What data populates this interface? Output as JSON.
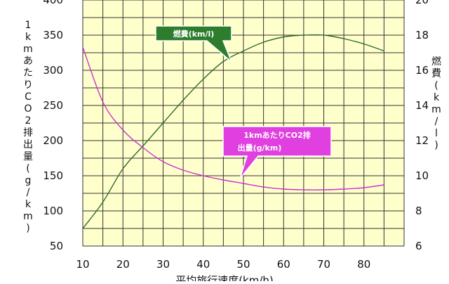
{
  "chart_data": {
    "type": "line",
    "xlabel": "平均旅行速度(km/h)",
    "ylabel_left": "1kmあたりCO2排出量(g/km)",
    "ylabel_right": "燃費(km/l)",
    "x_ticks": [
      10,
      20,
      30,
      40,
      50,
      60,
      70,
      80
    ],
    "y_left_ticks": [
      50,
      100,
      150,
      200,
      250,
      300,
      350,
      400
    ],
    "y_right_ticks": [
      6,
      8,
      10,
      12,
      14,
      16,
      18,
      20
    ],
    "xlim": [
      10,
      90
    ],
    "ylim_left": [
      50,
      400
    ],
    "ylim_right": [
      6,
      20
    ],
    "grid": true,
    "series": [
      {
        "name": "燃費(km/l)",
        "axis": "right",
        "color": "#2e6b2e",
        "x": [
          10,
          15,
          20,
          25,
          30,
          35,
          40,
          45,
          50,
          55,
          60,
          65,
          70,
          75,
          80,
          85
        ],
        "y": [
          7.0,
          8.5,
          10.4,
          11.7,
          13.0,
          14.3,
          15.5,
          16.5,
          17.1,
          17.6,
          17.9,
          18.0,
          18.0,
          17.8,
          17.5,
          17.1
        ]
      },
      {
        "name": "1kmあたりCO2排出量(g/km)",
        "axis": "left",
        "color": "#cc33cc",
        "x": [
          10,
          15,
          20,
          25,
          30,
          35,
          40,
          45,
          50,
          55,
          60,
          65,
          70,
          75,
          80,
          85
        ],
        "y": [
          333,
          255,
          215,
          190,
          170,
          158,
          150,
          144,
          139,
          134,
          131,
          130,
          130,
          131,
          133,
          137
        ]
      }
    ],
    "annotations": [
      {
        "text": "燃費(km/l)",
        "series": 0
      },
      {
        "text_line1": "1kmあたりCO2排",
        "text_line2": "出量(g/km)",
        "series": 1
      }
    ]
  },
  "colors": {
    "plot_background": "#ffffcc",
    "grid": "#333333",
    "fuel_callout_fill": "#2e7d2e",
    "co2_callout_fill": "#e040e0"
  }
}
